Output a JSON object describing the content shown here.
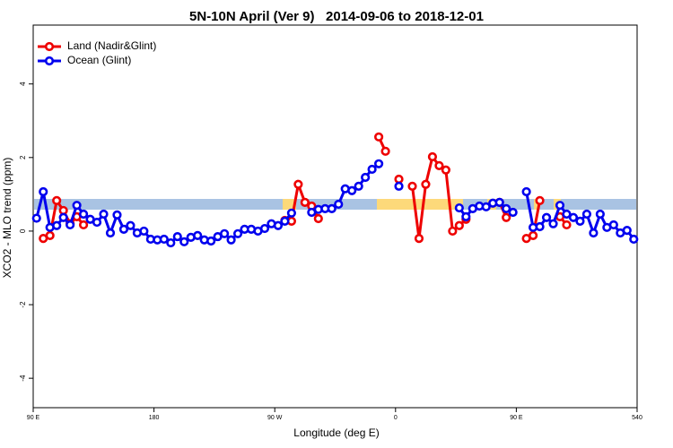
{
  "chart_data": {
    "type": "line",
    "title": "5N-10N April (Ver 9)   2014-09-06 to 2018-12-01",
    "xlabel": "Longitude (deg E)",
    "ylabel": "XCO2 - MLO trend (ppm)",
    "xlim": [
      90,
      540
    ],
    "ylim": [
      -4.8,
      5.6
    ],
    "xticks": [
      {
        "value": 90,
        "label": "90 E"
      },
      180,
      {
        "value": 270,
        "label": "90 W"
      },
      {
        "value": 360,
        "label": "0"
      },
      {
        "value": 450,
        "label": "90 E"
      },
      540
    ],
    "yticks": [
      -4,
      -2,
      0,
      2,
      4
    ],
    "legend": "top-left",
    "x": [
      92.5,
      97.5,
      102.5,
      107.5,
      112.5,
      117.5,
      122.5,
      127.5,
      132.5,
      137.5,
      142.5,
      147.5,
      152.5,
      157.5,
      162.5,
      167.5,
      172.5,
      177.5,
      182.5,
      187.5,
      192.5,
      197.5,
      202.5,
      207.5,
      212.5,
      217.5,
      222.5,
      227.5,
      232.5,
      237.5,
      242.5,
      247.5,
      252.5,
      257.5,
      262.5,
      267.5,
      272.5,
      277.5,
      282.5,
      287.5,
      292.5,
      297.5,
      302.5,
      307.5,
      312.5,
      317.5,
      322.5,
      327.5,
      332.5,
      337.5,
      342.5,
      347.5,
      352.5,
      357.5,
      362.5,
      367.5,
      372.5,
      377.5,
      382.5,
      387.5,
      392.5,
      397.5,
      402.5,
      407.5,
      412.5,
      417.5,
      422.5,
      427.5,
      432.5,
      437.5,
      442.5,
      447.5,
      452.5,
      457.5,
      462.5,
      467.5,
      472.5,
      477.5,
      482.5,
      487.5,
      492.5,
      497.5,
      502.5,
      507.5,
      512.5,
      517.5,
      522.5,
      527.5,
      532.5,
      537.5
    ],
    "series": [
      {
        "name": "Land (Nadir&Glint)",
        "color": "#ee0000",
        "values": [
          null,
          -0.2,
          -0.12,
          0.83,
          0.56,
          0.2,
          0.39,
          0.17,
          null,
          null,
          null,
          null,
          null,
          null,
          null,
          null,
          null,
          null,
          null,
          null,
          null,
          null,
          null,
          null,
          null,
          null,
          null,
          null,
          null,
          null,
          null,
          null,
          null,
          null,
          null,
          null,
          null,
          0.29,
          0.27,
          1.27,
          0.78,
          0.68,
          0.34,
          null,
          null,
          null,
          null,
          null,
          null,
          null,
          null,
          2.56,
          2.17,
          null,
          1.41,
          null,
          1.22,
          -0.2,
          1.27,
          2.02,
          1.78,
          1.66,
          0,
          0.15,
          0.32,
          null,
          null,
          null,
          null,
          0.78,
          0.37,
          null,
          null,
          -0.2,
          -0.12,
          0.83,
          null,
          null,
          0.39,
          0.17,
          null,
          null,
          null,
          null,
          null,
          null,
          null,
          null,
          null,
          null
        ]
      },
      {
        "name": "Ocean (Glint)",
        "color": "#0000ee",
        "values": [
          0.35,
          1.07,
          0.1,
          0.15,
          0.37,
          0.17,
          0.7,
          0.46,
          0.32,
          0.24,
          0.46,
          -0.05,
          0.44,
          0.05,
          0.15,
          -0.05,
          0,
          -0.22,
          -0.24,
          -0.22,
          -0.32,
          -0.15,
          -0.29,
          -0.17,
          -0.12,
          -0.24,
          -0.27,
          -0.15,
          -0.07,
          -0.24,
          -0.07,
          0.05,
          0.05,
          0,
          0.07,
          0.2,
          0.15,
          0.27,
          0.49,
          null,
          null,
          0.51,
          0.59,
          0.61,
          0.61,
          0.73,
          1.15,
          1.1,
          1.22,
          1.46,
          1.68,
          1.83,
          null,
          null,
          1.22,
          null,
          null,
          null,
          null,
          null,
          null,
          null,
          null,
          0.63,
          0.39,
          0.61,
          0.68,
          0.66,
          0.76,
          0.78,
          0.61,
          0.51,
          null,
          1.07,
          0.1,
          0.12,
          0.37,
          0.2,
          0.7,
          0.46,
          0.37,
          0.27,
          0.46,
          -0.05,
          0.46,
          0.1,
          0.17,
          -0.05,
          0.02,
          -0.22
        ]
      }
    ]
  }
}
